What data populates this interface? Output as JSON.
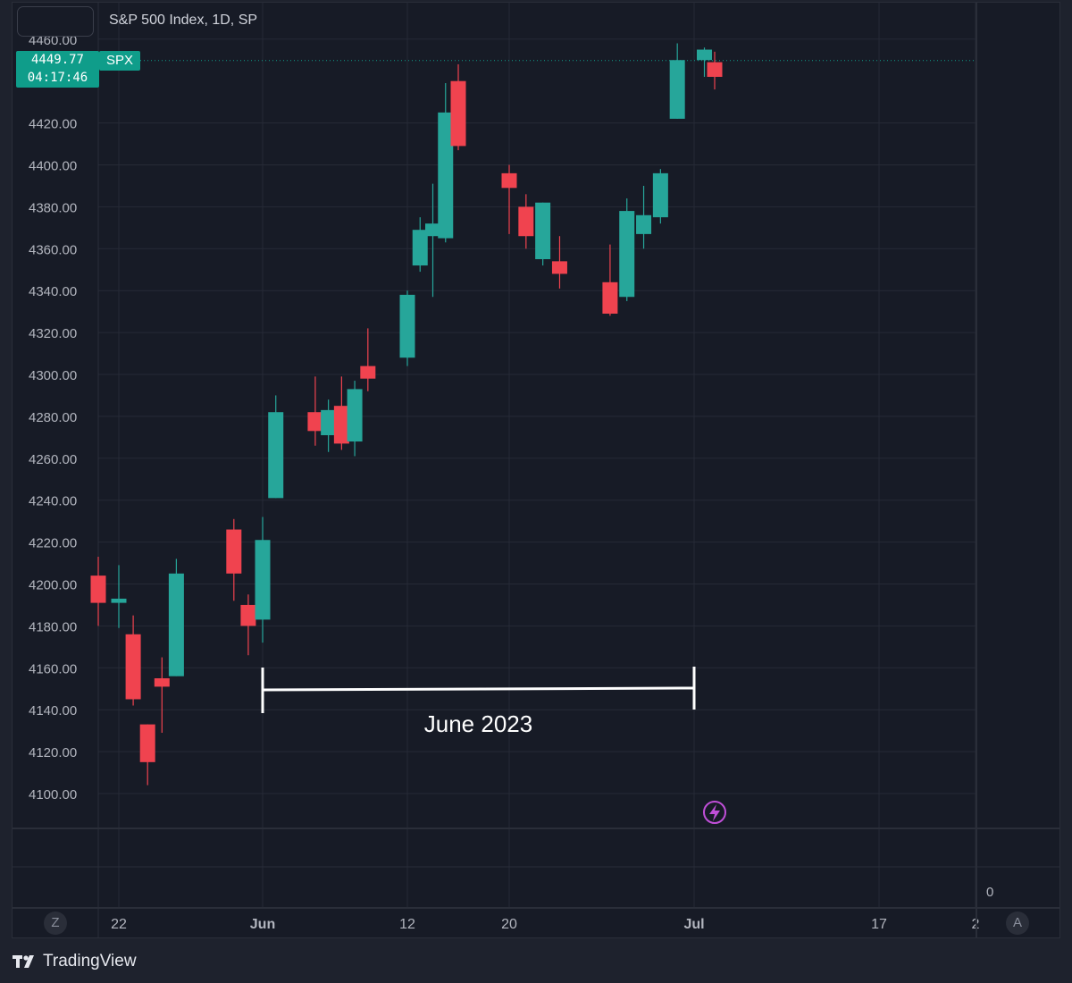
{
  "header": {
    "symbol_title": "S&P 500 Index, 1D, SP"
  },
  "last_price": {
    "value": "4449.77",
    "countdown": "04:17:46",
    "symbol": "SPX"
  },
  "colors": {
    "up": "#26a69a",
    "down": "#f0434f",
    "background": "#171b26",
    "grid": "#262a36",
    "accent": "#0f9d8a"
  },
  "scale_buttons": {
    "left": "Z",
    "right": "A"
  },
  "lower_pane": {
    "value_label": "0"
  },
  "annotation": {
    "text": "June 2023"
  },
  "icons": {
    "lightning": "lightning-icon",
    "brand": "tradingview-logo"
  },
  "footer": {
    "brand": "TradingView"
  },
  "chart_data": {
    "type": "candlestick",
    "title": "S&P 500 Index, 1D, SP",
    "y_ticks": [
      "4460.00",
      "4420.00",
      "4400.00",
      "4380.00",
      "4360.00",
      "4340.00",
      "4320.00",
      "4300.00",
      "4280.00",
      "4260.00",
      "4240.00",
      "4220.00",
      "4200.00",
      "4180.00",
      "4160.00",
      "4140.00",
      "4120.00",
      "4100.00"
    ],
    "ylim": [
      4085,
      4460
    ],
    "x_ticks": [
      {
        "label": "22",
        "date": "2023-05-22"
      },
      {
        "label": "Jun",
        "date": "2023-06-01"
      },
      {
        "label": "12",
        "date": "2023-06-12"
      },
      {
        "label": "20",
        "date": "2023-06-20"
      },
      {
        "label": "Jul",
        "date": "2023-07-01"
      },
      {
        "label": "17",
        "date": "2023-07-17"
      },
      {
        "label": "2",
        "date": "2023-07-24"
      }
    ],
    "candles": [
      {
        "date": "2023-05-19",
        "open": 4204,
        "high": 4213,
        "low": 4180,
        "close": 4191
      },
      {
        "date": "2023-05-22",
        "open": 4191,
        "high": 4209,
        "low": 4179,
        "close": 4193
      },
      {
        "date": "2023-05-23",
        "open": 4176,
        "high": 4185,
        "low": 4142,
        "close": 4145
      },
      {
        "date": "2023-05-24",
        "open": 4133,
        "high": 4133,
        "low": 4104,
        "close": 4115
      },
      {
        "date": "2023-05-25",
        "open": 4155,
        "high": 4165,
        "low": 4129,
        "close": 4151
      },
      {
        "date": "2023-05-26",
        "open": 4156,
        "high": 4212,
        "low": 4156,
        "close": 4205
      },
      {
        "date": "2023-05-30",
        "open": 4226,
        "high": 4231,
        "low": 4192,
        "close": 4205
      },
      {
        "date": "2023-05-31",
        "open": 4190,
        "high": 4195,
        "low": 4166,
        "close": 4180
      },
      {
        "date": "2023-06-01",
        "open": 4183,
        "high": 4232,
        "low": 4172,
        "close": 4221
      },
      {
        "date": "2023-06-02",
        "open": 4241,
        "high": 4290,
        "low": 4241,
        "close": 4282
      },
      {
        "date": "2023-06-05",
        "open": 4282,
        "high": 4299,
        "low": 4266,
        "close": 4273
      },
      {
        "date": "2023-06-06",
        "open": 4271,
        "high": 4288,
        "low": 4263,
        "close": 4283
      },
      {
        "date": "2023-06-07",
        "open": 4285,
        "high": 4299,
        "low": 4264,
        "close": 4267
      },
      {
        "date": "2023-06-08",
        "open": 4268,
        "high": 4297,
        "low": 4261,
        "close": 4293
      },
      {
        "date": "2023-06-09",
        "open": 4304,
        "high": 4322,
        "low": 4292,
        "close": 4298
      },
      {
        "date": "2023-06-12",
        "open": 4308,
        "high": 4340,
        "low": 4304,
        "close": 4338
      },
      {
        "date": "2023-06-13",
        "open": 4352,
        "high": 4375,
        "low": 4349,
        "close": 4369
      },
      {
        "date": "2023-06-14",
        "open": 4366,
        "high": 4391,
        "low": 4337,
        "close": 4372
      },
      {
        "date": "2023-06-15",
        "open": 4365,
        "high": 4439,
        "low": 4363,
        "close": 4425
      },
      {
        "date": "2023-06-16",
        "open": 4440,
        "high": 4448,
        "low": 4407,
        "close": 4409
      },
      {
        "date": "2023-06-20",
        "open": 4396,
        "high": 4400,
        "low": 4367,
        "close": 4389
      },
      {
        "date": "2023-06-21",
        "open": 4380,
        "high": 4386,
        "low": 4360,
        "close": 4366
      },
      {
        "date": "2023-06-22",
        "open": 4355,
        "high": 4382,
        "low": 4352,
        "close": 4382
      },
      {
        "date": "2023-06-23",
        "open": 4354,
        "high": 4366,
        "low": 4341,
        "close": 4348
      },
      {
        "date": "2023-06-26",
        "open": 4344,
        "high": 4362,
        "low": 4328,
        "close": 4329
      },
      {
        "date": "2023-06-27",
        "open": 4337,
        "high": 4384,
        "low": 4335,
        "close": 4378
      },
      {
        "date": "2023-06-28",
        "open": 4367,
        "high": 4390,
        "low": 4360,
        "close": 4376
      },
      {
        "date": "2023-06-29",
        "open": 4375,
        "high": 4398,
        "low": 4372,
        "close": 4396
      },
      {
        "date": "2023-06-30",
        "open": 4422,
        "high": 4458,
        "low": 4422,
        "close": 4450
      },
      {
        "date": "2023-07-03",
        "open": 4450,
        "high": 4456,
        "low": 4442,
        "close": 4455
      },
      {
        "date": "2023-07-05",
        "open": 4449,
        "high": 4454,
        "low": 4436,
        "close": 4442
      }
    ],
    "last_price": 4449.77,
    "annotations": [
      {
        "type": "range",
        "label": "June 2023",
        "from": "2023-06-01",
        "to": "2023-07-01"
      }
    ],
    "grid": true
  }
}
